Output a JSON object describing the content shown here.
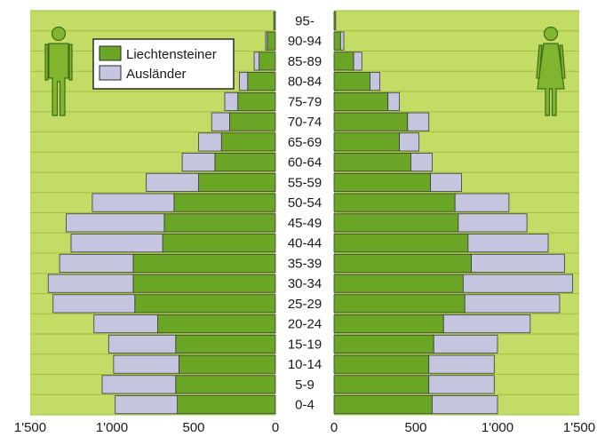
{
  "chart_data": {
    "type": "bar",
    "subtype": "population-pyramid",
    "colors": {
      "liechtensteiner": "#6aa526",
      "auslaender": "#c6c5e0",
      "background": "#c2dc66",
      "bar_stroke": "#3a3a3a",
      "figure": "#82b52f"
    },
    "legend": {
      "placement": "upper-left of left half",
      "entries": [
        {
          "key": "liechtensteiner",
          "label": "Liechtensteiner"
        },
        {
          "key": "auslaender",
          "label": "Ausländer"
        }
      ]
    },
    "categories": [
      "0-4",
      "5-9",
      "10-14",
      "15-19",
      "20-24",
      "25-29",
      "30-34",
      "35-39",
      "40-44",
      "45-49",
      "50-54",
      "55-59",
      "60-64",
      "65-69",
      "70-74",
      "75-79",
      "80-84",
      "85-89",
      "90-94",
      "95-"
    ],
    "left": {
      "icon": "male-figure-icon",
      "max": 1500,
      "ticks": [
        {
          "v": 1500,
          "label": "1'500"
        },
        {
          "v": 1000,
          "label": "1'000"
        },
        {
          "v": 500,
          "label": "500"
        },
        {
          "v": 0,
          "label": "0"
        }
      ],
      "series": [
        {
          "key": "liechtensteiner",
          "values": [
            600,
            610,
            590,
            610,
            720,
            860,
            870,
            870,
            690,
            680,
            620,
            470,
            370,
            330,
            280,
            230,
            170,
            100,
            50,
            10
          ]
        },
        {
          "key": "auslaender",
          "values": [
            380,
            450,
            400,
            410,
            390,
            500,
            520,
            450,
            560,
            600,
            500,
            320,
            200,
            140,
            110,
            80,
            50,
            30,
            10,
            0
          ]
        }
      ]
    },
    "right": {
      "icon": "female-figure-icon",
      "max": 1500,
      "ticks": [
        {
          "v": 0,
          "label": "0"
        },
        {
          "v": 500,
          "label": "500"
        },
        {
          "v": 1000,
          "label": "1'000"
        },
        {
          "v": 1500,
          "label": "1'500"
        }
      ],
      "series": [
        {
          "key": "liechtensteiner",
          "values": [
            600,
            580,
            580,
            610,
            670,
            800,
            790,
            840,
            820,
            760,
            740,
            590,
            470,
            400,
            450,
            330,
            220,
            120,
            40,
            10
          ]
        },
        {
          "key": "auslaender",
          "values": [
            400,
            400,
            400,
            390,
            530,
            580,
            670,
            570,
            490,
            420,
            330,
            190,
            130,
            120,
            130,
            70,
            60,
            50,
            20,
            0
          ]
        }
      ]
    }
  }
}
